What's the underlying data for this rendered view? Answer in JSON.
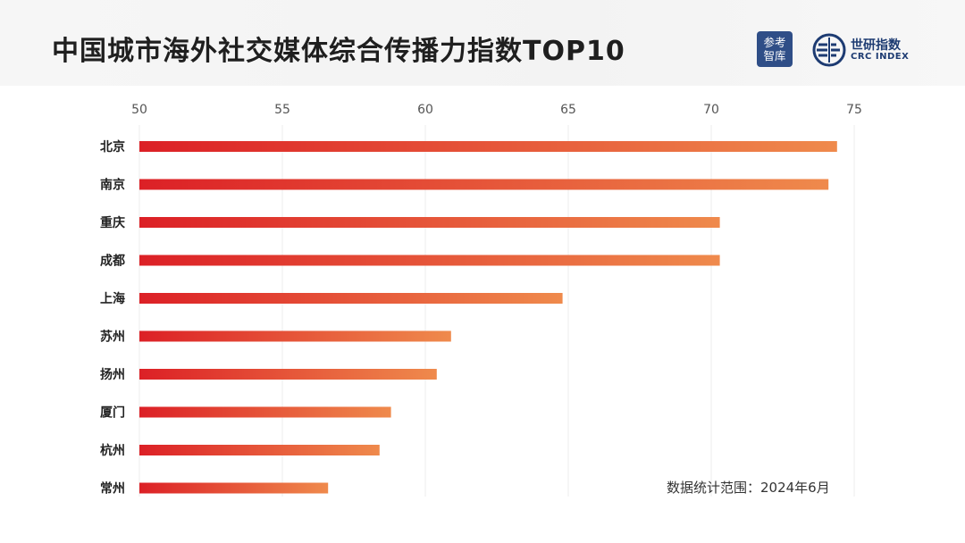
{
  "header": {
    "title": "中国城市海外社交媒体综合传播力指数TOP10",
    "logo_ckzk_line1": "参考",
    "logo_ckzk_line2": "智库",
    "logo_crc_cn": "世研指数",
    "logo_crc_en": "CRC INDEX"
  },
  "note": "数据统计范围：2024年6月",
  "colors": {
    "bar_start": "#dc2026",
    "bar_end": "#ef8a4c",
    "logo_ckzk_bg": "#2f4e87",
    "logo_crc": "#1d3b72"
  },
  "chart_data": {
    "type": "bar",
    "orientation": "horizontal",
    "title": "中国城市海外社交媒体综合传播力指数TOP10",
    "categories": [
      "北京",
      "南京",
      "重庆",
      "成都",
      "上海",
      "苏州",
      "扬州",
      "厦门",
      "杭州",
      "常州"
    ],
    "values": [
      74.4,
      74.1,
      70.3,
      70.3,
      64.8,
      60.9,
      60.4,
      58.8,
      58.4,
      56.6
    ],
    "xlim": [
      50,
      75
    ],
    "xticks": [
      "50",
      "55",
      "60",
      "65",
      "70",
      "75"
    ],
    "xtick_values": [
      50,
      55,
      60,
      65,
      70,
      75
    ],
    "axis_position": "top",
    "grid": true
  }
}
